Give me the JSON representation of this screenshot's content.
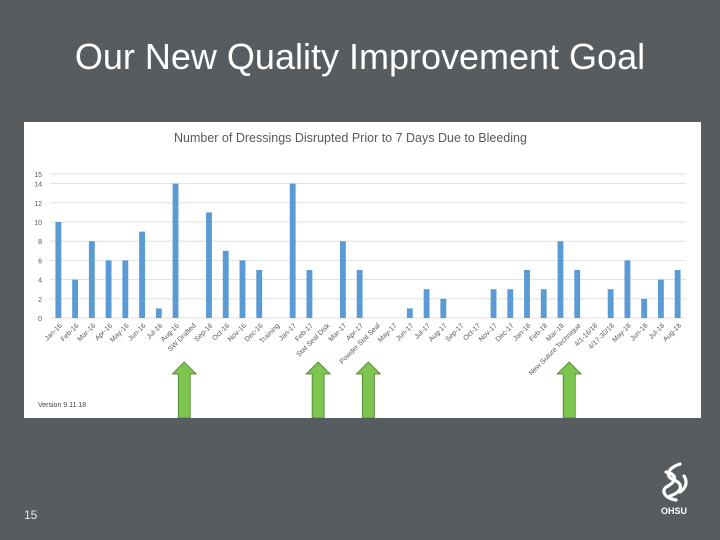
{
  "slide": {
    "title": "Our New Quality Improvement Goal",
    "page_number": "15",
    "version_note": "Version 9.11.18",
    "logo_text": "OHSU"
  },
  "colors": {
    "background": "#575c60",
    "bar": "#5b9bd5",
    "arrow": "#7dc54f",
    "grid": "#d9d9d9"
  },
  "chart_data": {
    "type": "bar",
    "title": "Number of Dressings Disrupted Prior to 7 Days Due to Bleeding",
    "xlabel": "",
    "ylabel": "",
    "ylim": [
      0,
      15
    ],
    "yticks": [
      0,
      2,
      4,
      6,
      8,
      10,
      12,
      14,
      15
    ],
    "grid": true,
    "legend": "none",
    "categories": [
      "Jan-16",
      "Feb-16",
      "Mar-16",
      "Apr-16",
      "May-16",
      "Jun-16",
      "Jul-16",
      "Aug-16",
      "SW Drafted",
      "Sep-16",
      "Oct-16",
      "Nov-16",
      "Dec-16",
      "Training",
      "Jan-17",
      "Feb-17",
      "Stat Seal Disk",
      "Mar-17",
      "Apr-17",
      "Powder Stat Seal",
      "May-17",
      "Jun-17",
      "Jul-17",
      "Aug-17",
      "Sep-17",
      "Oct-17",
      "Nov-17",
      "Dec-17",
      "Jan-18",
      "Feb-18",
      "Mar-18",
      "New Suture Technique",
      "4/1-16/18",
      "4/17-30/18",
      "May-18",
      "Jun-18",
      "Jul-18",
      "Aug-18"
    ],
    "values": [
      10,
      4,
      8,
      6,
      6,
      9,
      1,
      14,
      0,
      11,
      7,
      6,
      5,
      0,
      14,
      5,
      0,
      8,
      5,
      0,
      0,
      1,
      3,
      2,
      0,
      0,
      3,
      3,
      5,
      3,
      8,
      5,
      0,
      3,
      6,
      2,
      4,
      5
    ],
    "annotations": [
      {
        "type": "arrow",
        "category": "SW Drafted"
      },
      {
        "type": "arrow",
        "category": "Stat Seal Disk"
      },
      {
        "type": "arrow",
        "category": "Powder Stat Seal"
      },
      {
        "type": "arrow",
        "category": "New Suture Technique"
      }
    ]
  }
}
